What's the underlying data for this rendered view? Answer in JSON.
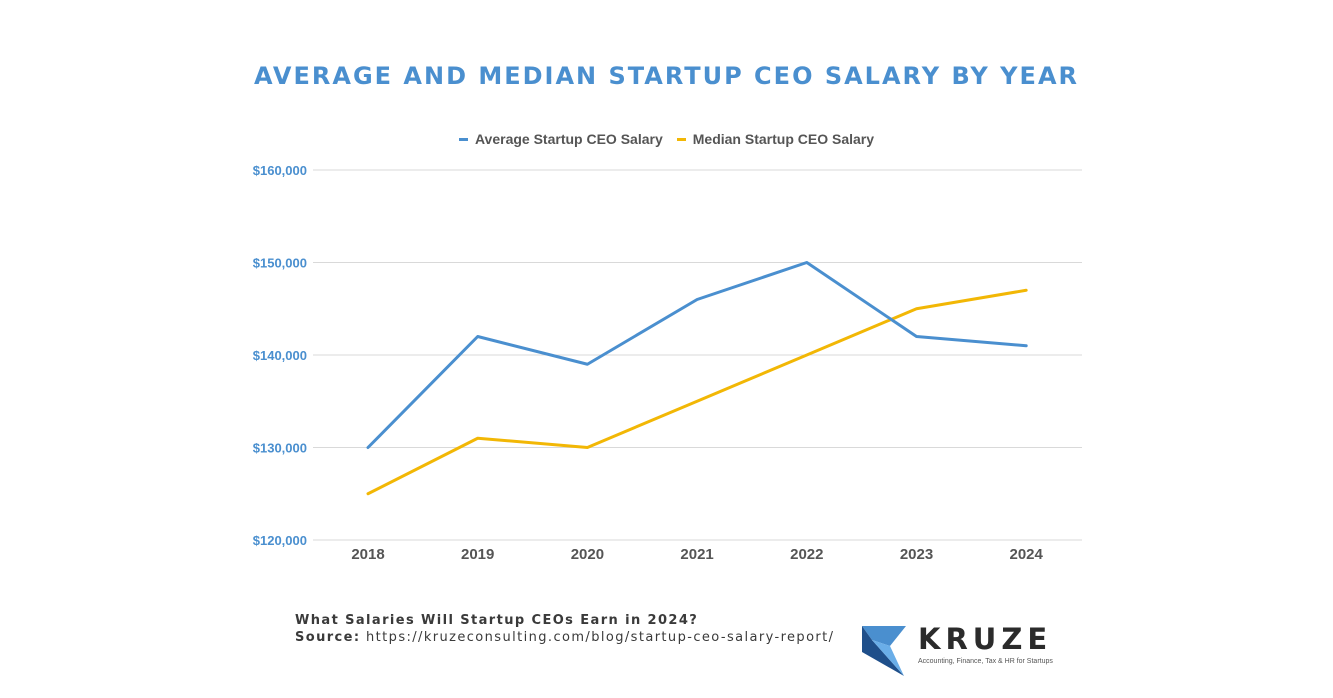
{
  "title": "AVERAGE AND MEDIAN STARTUP CEO SALARY BY YEAR",
  "colors": {
    "average": "#4a8fcf",
    "median": "#f2b705",
    "grid": "#d9d9d9",
    "ytick": "#4a8fcf",
    "xtick": "#555555"
  },
  "chart_data": {
    "type": "line",
    "title": "AVERAGE AND MEDIAN STARTUP CEO SALARY BY YEAR",
    "x": [
      "2018",
      "2019",
      "2020",
      "2021",
      "2022",
      "2023",
      "2024"
    ],
    "series": [
      {
        "name": "Average Startup CEO Salary",
        "values": [
          130000,
          142000,
          139000,
          146000,
          150000,
          142000,
          141000
        ]
      },
      {
        "name": "Median Startup CEO Salary",
        "values": [
          125000,
          131000,
          130000,
          135000,
          140000,
          145000,
          147000
        ]
      }
    ],
    "ylim": [
      120000,
      160000
    ],
    "yticks": [
      "$120,000",
      "$130,000",
      "$140,000",
      "$150,000",
      "$160,000"
    ],
    "ytick_values": [
      120000,
      130000,
      140000,
      150000,
      160000
    ],
    "xlabel": "",
    "ylabel": "",
    "grid": true,
    "legend": "top-center"
  },
  "footer": {
    "line1": "What Salaries Will Startup CEOs Earn in 2024?",
    "source_label": "Source:",
    "source_url": "https://kruzeconsulting.com/blog/startup-ceo-salary-report/"
  },
  "logo": {
    "wordmark": "KRUZE",
    "tagline": "Accounting, Finance, Tax & HR for Startups"
  }
}
